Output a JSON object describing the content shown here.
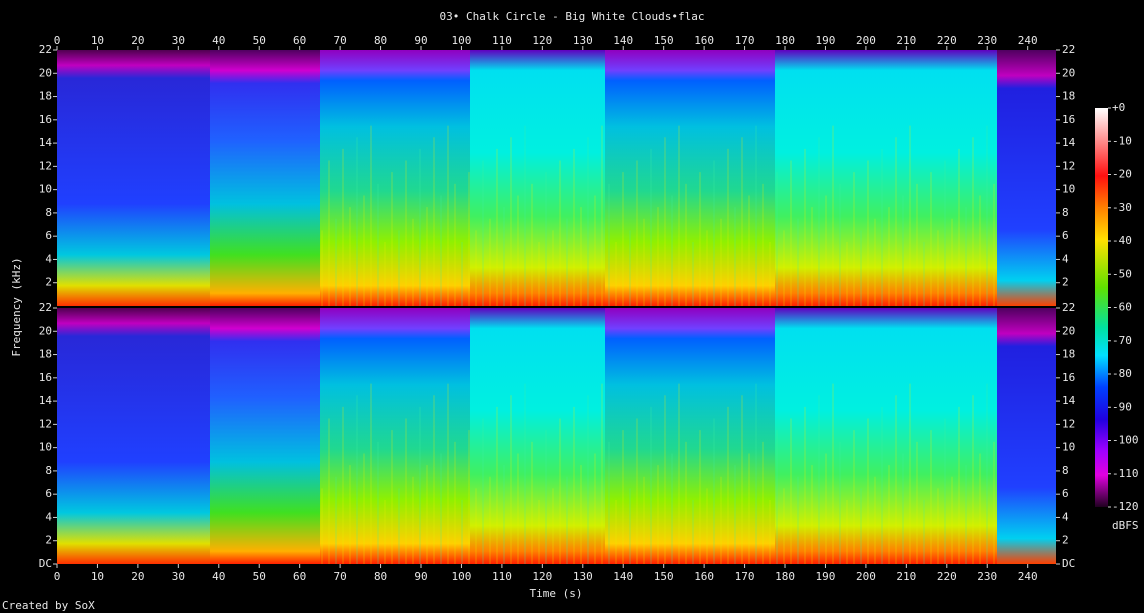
{
  "chart_data": {
    "type": "spectrogram",
    "title": "03• Chalk Circle - Big White Clouds•flac",
    "x_label": "Time (s)",
    "y_label": "Frequency (kHz)",
    "xlim": [
      0,
      247
    ],
    "xticks": [
      0,
      10,
      20,
      30,
      40,
      50,
      60,
      70,
      80,
      90,
      100,
      110,
      120,
      130,
      140,
      150,
      160,
      170,
      180,
      190,
      200,
      210,
      220,
      230,
      240
    ],
    "channels": [
      {
        "ylim": [
          0,
          22
        ],
        "yticks": [
          2,
          4,
          6,
          8,
          10,
          12,
          14,
          16,
          18,
          20,
          22
        ]
      },
      {
        "ylim": [
          0,
          22
        ],
        "yticks": [
          {
            "value": 0,
            "label": "DC"
          },
          2,
          4,
          6,
          8,
          10,
          12,
          14,
          16,
          18,
          20,
          22
        ]
      }
    ],
    "colorbar": {
      "label": "dBFS",
      "lim": [
        -120,
        0
      ],
      "ticks": [
        {
          "value": 0,
          "label": "+0"
        },
        -10,
        -20,
        -30,
        -40,
        -50,
        -60,
        -70,
        -80,
        -90,
        -100,
        -110,
        -120
      ]
    },
    "footer": "Created by SoX"
  }
}
